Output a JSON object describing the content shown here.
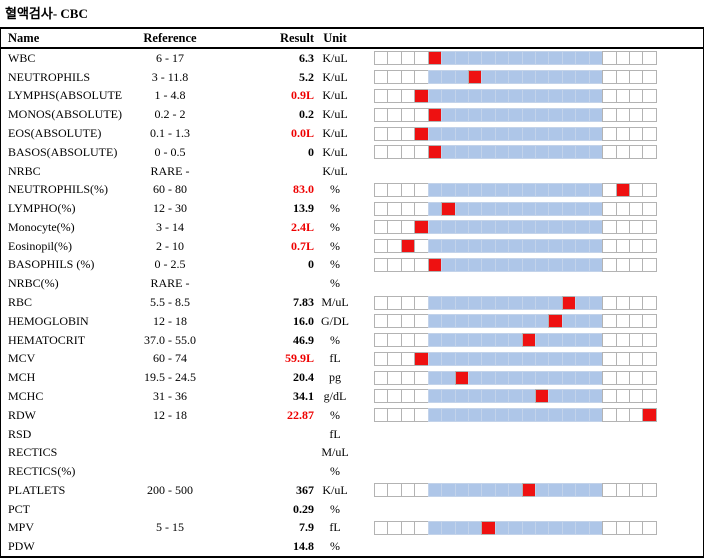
{
  "title": "혈액검사- CBC",
  "table": {
    "headers": {
      "name": "Name",
      "reference": "Reference",
      "result": "Result",
      "unit": "Unit"
    },
    "bar": {
      "total_cells": 21,
      "range_start_cell": 4,
      "range_end_cell": 16,
      "range_color": "#aec6e8",
      "marker_color": "#ee1111",
      "cell_border_color": "#b3b3b3"
    },
    "colors": {
      "abnormal_text": "#ee0000",
      "normal_text": "#000000"
    },
    "rows": [
      {
        "name": "WBC",
        "reference": "6 - 17",
        "result": "6.3",
        "unit": "K/uL",
        "flag": "normal",
        "marker": 4
      },
      {
        "name": "NEUTROPHILS",
        "reference": "3 - 11.8",
        "result": "5.2",
        "unit": "K/uL",
        "flag": "normal",
        "marker": 7
      },
      {
        "name": "LYMPHS(ABSOLUTE",
        "reference": "1 - 4.8",
        "result": "0.9L",
        "unit": "K/uL",
        "flag": "low",
        "marker": 3
      },
      {
        "name": "MONOS(ABSOLUTE)",
        "reference": "0.2 - 2",
        "result": "0.2",
        "unit": "K/uL",
        "flag": "normal",
        "marker": 4
      },
      {
        "name": "EOS(ABSOLUTE)",
        "reference": "0.1 - 1.3",
        "result": "0.0L",
        "unit": "K/uL",
        "flag": "low",
        "marker": 3
      },
      {
        "name": "BASOS(ABSOLUTE)",
        "reference": "0 - 0.5",
        "result": "0",
        "unit": "K/uL",
        "flag": "normal",
        "marker": 4
      },
      {
        "name": "NRBC",
        "reference": "RARE -",
        "result": "",
        "unit": "K/uL",
        "flag": "normal",
        "marker": null
      },
      {
        "name": "NEUTROPHILS(%)",
        "reference": "60 - 80",
        "result": "83.0",
        "unit": "%",
        "flag": "high",
        "marker": 18
      },
      {
        "name": "LYMPHO(%)",
        "reference": "12 - 30",
        "result": "13.9",
        "unit": "%",
        "flag": "normal",
        "marker": 5
      },
      {
        "name": "Monocyte(%)",
        "reference": "3 - 14",
        "result": "2.4L",
        "unit": "%",
        "flag": "low",
        "marker": 3
      },
      {
        "name": "Eosinopil(%)",
        "reference": "2 - 10",
        "result": "0.7L",
        "unit": "%",
        "flag": "low",
        "marker": 2
      },
      {
        "name": "BASOPHILS (%)",
        "reference": "0 - 2.5",
        "result": "0",
        "unit": "%",
        "flag": "normal",
        "marker": 4
      },
      {
        "name": "NRBC(%)",
        "reference": "RARE -",
        "result": "",
        "unit": "%",
        "flag": "normal",
        "marker": null
      },
      {
        "name": "RBC",
        "reference": "5.5 - 8.5",
        "result": "7.83",
        "unit": "M/uL",
        "flag": "normal",
        "marker": 14
      },
      {
        "name": "HEMOGLOBIN",
        "reference": "12 - 18",
        "result": "16.0",
        "unit": "G/DL",
        "flag": "normal",
        "marker": 13
      },
      {
        "name": "HEMATOCRIT",
        "reference": "37.0 - 55.0",
        "result": "46.9",
        "unit": "%",
        "flag": "normal",
        "marker": 11
      },
      {
        "name": "MCV",
        "reference": "60 - 74",
        "result": "59.9L",
        "unit": "fL",
        "flag": "low",
        "marker": 3
      },
      {
        "name": "MCH",
        "reference": "19.5 - 24.5",
        "result": "20.4",
        "unit": "pg",
        "flag": "normal",
        "marker": 6
      },
      {
        "name": "MCHC",
        "reference": "31 - 36",
        "result": "34.1",
        "unit": "g/dL",
        "flag": "normal",
        "marker": 12
      },
      {
        "name": "RDW",
        "reference": "12 - 18",
        "result": "22.87",
        "unit": "%",
        "flag": "high",
        "marker": 20
      },
      {
        "name": "RSD",
        "reference": "",
        "result": "",
        "unit": "fL",
        "flag": "normal",
        "marker": null
      },
      {
        "name": "RECTICS",
        "reference": "",
        "result": "",
        "unit": "M/uL",
        "flag": "normal",
        "marker": null
      },
      {
        "name": "RECTICS(%)",
        "reference": "",
        "result": "",
        "unit": "%",
        "flag": "normal",
        "marker": null
      },
      {
        "name": "PLATLETS",
        "reference": "200 - 500",
        "result": "367",
        "unit": "K/uL",
        "flag": "normal",
        "marker": 11
      },
      {
        "name": "PCT",
        "reference": "",
        "result": "0.29",
        "unit": "%",
        "flag": "normal",
        "marker": null
      },
      {
        "name": "MPV",
        "reference": "5 - 15",
        "result": "7.9",
        "unit": "fL",
        "flag": "normal",
        "marker": 8
      },
      {
        "name": "PDW",
        "reference": "",
        "result": "14.8",
        "unit": "%",
        "flag": "normal",
        "marker": null
      }
    ]
  }
}
